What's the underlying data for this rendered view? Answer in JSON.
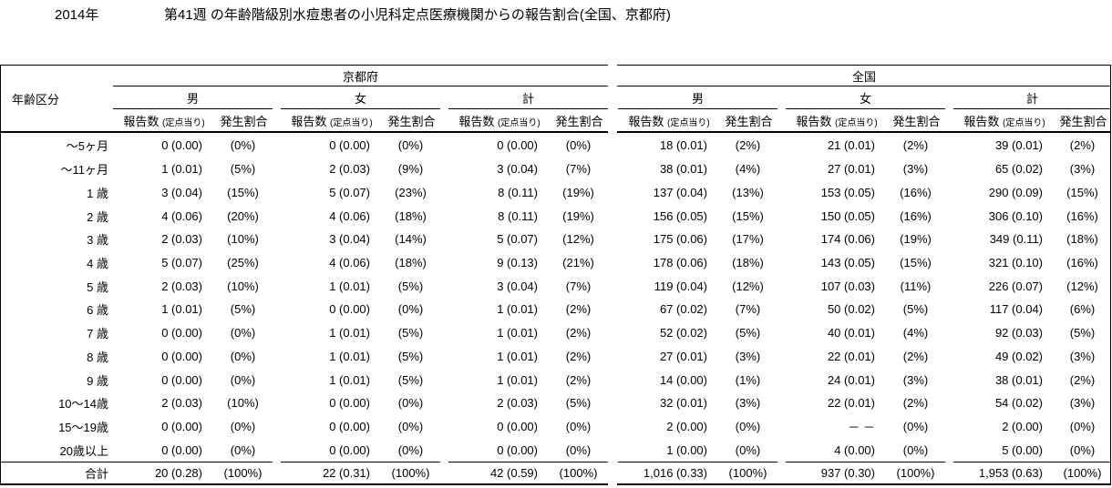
{
  "chart_data": {
    "type": "table",
    "title_year": "2014年",
    "title": "第41週 の年齢階級別水痘患者の小児科定点医療機関からの報告割合(全国、京都府)",
    "col_age_header": "年齢区分",
    "regions": [
      "京都府",
      "全国"
    ],
    "genders": [
      "男",
      "女",
      "計"
    ],
    "measure_count": "報告数",
    "measure_count_sub": "(定点当り)",
    "measure_pct": "発生割合",
    "cell_order": [
      "京都府-男-報告数(定点当り)",
      "京都府-男-発生割合",
      "京都府-女-報告数(定点当り)",
      "京都府-女-発生割合",
      "京都府-計-報告数(定点当り)",
      "京都府-計-発生割合",
      "全国-男-報告数(定点当り)",
      "全国-男-発生割合",
      "全国-女-報告数(定点当り)",
      "全国-女-発生割合",
      "全国-計-報告数(定点当り)",
      "全国-計-発生割合"
    ],
    "rows": [
      {
        "age": "～5ヶ月",
        "cells": [
          "0 (0.00)",
          "(0%)",
          "0 (0.00)",
          "(0%)",
          "0 (0.00)",
          "(0%)",
          "18 (0.01)",
          "(2%)",
          "21 (0.01)",
          "(2%)",
          "39 (0.01)",
          "(2%)"
        ]
      },
      {
        "age": "～11ヶ月",
        "cells": [
          "1 (0.01)",
          "(5%)",
          "2 (0.03)",
          "(9%)",
          "3 (0.04)",
          "(7%)",
          "38 (0.01)",
          "(4%)",
          "27 (0.01)",
          "(3%)",
          "65 (0.02)",
          "(3%)"
        ]
      },
      {
        "age": "1 歳",
        "cells": [
          "3 (0.04)",
          "(15%)",
          "5 (0.07)",
          "(23%)",
          "8 (0.11)",
          "(19%)",
          "137 (0.04)",
          "(13%)",
          "153 (0.05)",
          "(16%)",
          "290 (0.09)",
          "(15%)"
        ]
      },
      {
        "age": "2 歳",
        "cells": [
          "4 (0.06)",
          "(20%)",
          "4 (0.06)",
          "(18%)",
          "8 (0.11)",
          "(19%)",
          "156 (0.05)",
          "(15%)",
          "150 (0.05)",
          "(16%)",
          "306 (0.10)",
          "(16%)"
        ]
      },
      {
        "age": "3 歳",
        "cells": [
          "2 (0.03)",
          "(10%)",
          "3 (0.04)",
          "(14%)",
          "5 (0.07)",
          "(12%)",
          "175 (0.06)",
          "(17%)",
          "174 (0.06)",
          "(19%)",
          "349 (0.11)",
          "(18%)"
        ]
      },
      {
        "age": "4 歳",
        "cells": [
          "5 (0.07)",
          "(25%)",
          "4 (0.06)",
          "(18%)",
          "9 (0.13)",
          "(21%)",
          "178 (0.06)",
          "(18%)",
          "143 (0.05)",
          "(15%)",
          "321 (0.10)",
          "(16%)"
        ]
      },
      {
        "age": "5 歳",
        "cells": [
          "2 (0.03)",
          "(10%)",
          "1 (0.01)",
          "(5%)",
          "3 (0.04)",
          "(7%)",
          "119 (0.04)",
          "(12%)",
          "107 (0.03)",
          "(11%)",
          "226 (0.07)",
          "(12%)"
        ]
      },
      {
        "age": "6 歳",
        "cells": [
          "1 (0.01)",
          "(5%)",
          "0 (0.00)",
          "(0%)",
          "1 (0.01)",
          "(2%)",
          "67 (0.02)",
          "(7%)",
          "50 (0.02)",
          "(5%)",
          "117 (0.04)",
          "(6%)"
        ]
      },
      {
        "age": "7 歳",
        "cells": [
          "0 (0.00)",
          "(0%)",
          "1 (0.01)",
          "(5%)",
          "1 (0.01)",
          "(2%)",
          "52 (0.02)",
          "(5%)",
          "40 (0.01)",
          "(4%)",
          "92 (0.03)",
          "(5%)"
        ]
      },
      {
        "age": "8 歳",
        "cells": [
          "0 (0.00)",
          "(0%)",
          "1 (0.01)",
          "(5%)",
          "1 (0.01)",
          "(2%)",
          "27 (0.01)",
          "(3%)",
          "22 (0.01)",
          "(2%)",
          "49 (0.02)",
          "(3%)"
        ]
      },
      {
        "age": "9 歳",
        "cells": [
          "0 (0.00)",
          "(0%)",
          "1 (0.01)",
          "(5%)",
          "1 (0.01)",
          "(2%)",
          "14 (0.00)",
          "(1%)",
          "24 (0.01)",
          "(3%)",
          "38 (0.01)",
          "(2%)"
        ]
      },
      {
        "age": "10～14歳",
        "cells": [
          "2 (0.03)",
          "(10%)",
          "0 (0.00)",
          "(0%)",
          "2 (0.03)",
          "(5%)",
          "32 (0.01)",
          "(3%)",
          "22 (0.01)",
          "(2%)",
          "54 (0.02)",
          "(3%)"
        ]
      },
      {
        "age": "15～19歳",
        "cells": [
          "0 (0.00)",
          "(0%)",
          "0 (0.00)",
          "(0%)",
          "0 (0.00)",
          "(0%)",
          "2 (0.00)",
          "(0%)",
          "－ －",
          "(0%)",
          "2 (0.00)",
          "(0%)"
        ]
      },
      {
        "age": "20歳以上",
        "cells": [
          "0 (0.00)",
          "(0%)",
          "0 (0.00)",
          "(0%)",
          "0 (0.00)",
          "(0%)",
          "1 (0.00)",
          "(0%)",
          "4 (0.00)",
          "(0%)",
          "5 (0.00)",
          "(0%)"
        ]
      }
    ],
    "total_row": {
      "age": "合計",
      "cells": [
        "20 (0.28)",
        "(100%)",
        "22 (0.31)",
        "(100%)",
        "42 (0.59)",
        "(100%)",
        "1,016 (0.33)",
        "(100%)",
        "937 (0.30)",
        "(100%)",
        "1,953 (0.63)",
        "(100%)"
      ]
    },
    "colors": {
      "text": "#000000",
      "background": "#ffffff",
      "rule": "#000000"
    }
  }
}
